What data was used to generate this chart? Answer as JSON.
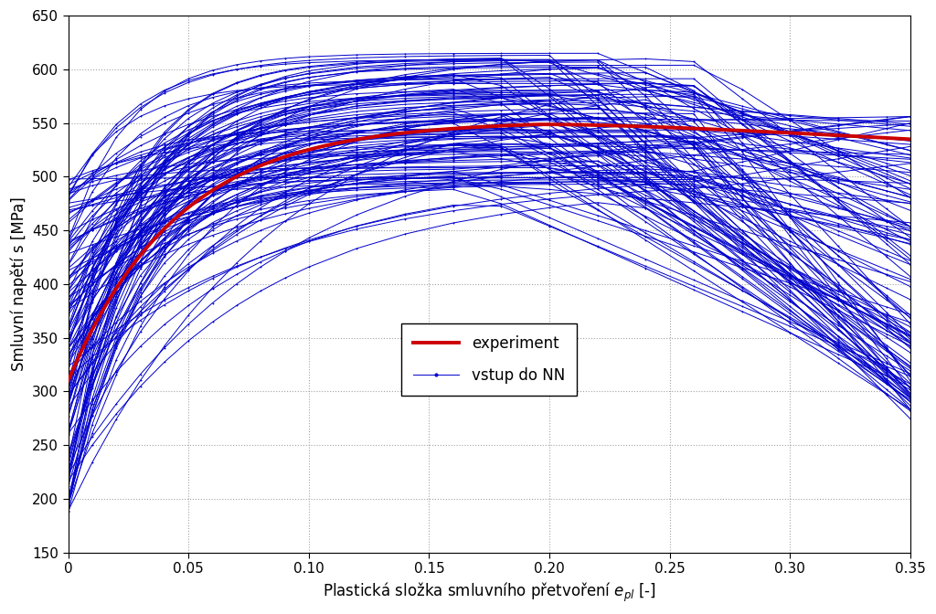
{
  "xlim": [
    0,
    0.35
  ],
  "ylim": [
    150,
    650
  ],
  "xlabel": "Plastická složka smluvního přetvoření $e_{pl}$ [-]",
  "ylabel": "Smluvní napětí s [MPa]",
  "xticks": [
    0,
    0.05,
    0.1,
    0.15,
    0.2,
    0.25,
    0.3,
    0.35
  ],
  "yticks": [
    150,
    200,
    250,
    300,
    350,
    400,
    450,
    500,
    550,
    600,
    650
  ],
  "legend_experiment": "experiment",
  "legend_vstup": "vstup do NN",
  "red_color": "#cc0000",
  "blue_color": "#0000cc",
  "background_color": "#ffffff",
  "grid_color": "#999999",
  "num_blue_curves": 120,
  "red_linewidth": 2.8,
  "blue_linewidth": 0.7,
  "seed": 42
}
